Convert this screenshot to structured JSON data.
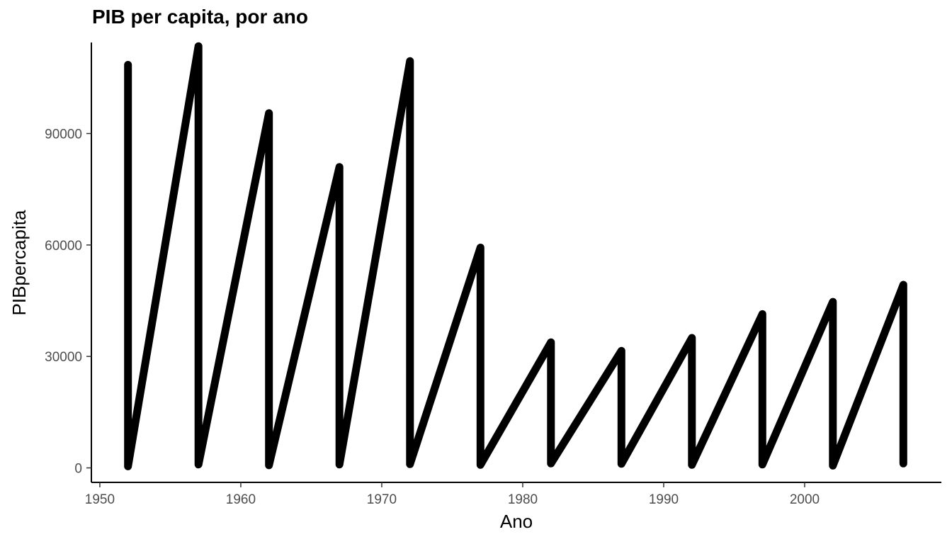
{
  "chart_data": {
    "type": "line",
    "title": "PIB per capita, por ano",
    "xlabel": "Ano",
    "ylabel": "PIBpercapita",
    "xlim": [
      1949.4,
      2009.7
    ],
    "ylim": [
      -3900,
      114500
    ],
    "x_ticks": [
      1950,
      1960,
      1970,
      1980,
      1990,
      2000
    ],
    "y_ticks": [
      0,
      30000,
      60000,
      90000
    ],
    "x_tick_labels": [
      "1950",
      "1960",
      "1970",
      "1980",
      "1990",
      "2000"
    ],
    "y_tick_labels": [
      "0",
      "30000",
      "60000",
      "90000"
    ],
    "grid": false,
    "line_color": "#000000",
    "points": [
      {
        "x": 1952,
        "y": 108500
      },
      {
        "x": 1952,
        "y": 400
      },
      {
        "x": 1957,
        "y": 113500
      },
      {
        "x": 1957,
        "y": 900
      },
      {
        "x": 1962,
        "y": 95500
      },
      {
        "x": 1962,
        "y": 700
      },
      {
        "x": 1967,
        "y": 81000
      },
      {
        "x": 1967,
        "y": 900
      },
      {
        "x": 1972,
        "y": 109500
      },
      {
        "x": 1972,
        "y": 1000
      },
      {
        "x": 1977,
        "y": 59300
      },
      {
        "x": 1977,
        "y": 800
      },
      {
        "x": 1982,
        "y": 33800
      },
      {
        "x": 1982,
        "y": 1200
      },
      {
        "x": 1987,
        "y": 31500
      },
      {
        "x": 1987,
        "y": 1100
      },
      {
        "x": 1992,
        "y": 35000
      },
      {
        "x": 1992,
        "y": 800
      },
      {
        "x": 1997,
        "y": 41400
      },
      {
        "x": 1997,
        "y": 900
      },
      {
        "x": 2002,
        "y": 44700
      },
      {
        "x": 2002,
        "y": 600
      },
      {
        "x": 2007,
        "y": 49300
      },
      {
        "x": 2007,
        "y": 1200
      }
    ]
  }
}
